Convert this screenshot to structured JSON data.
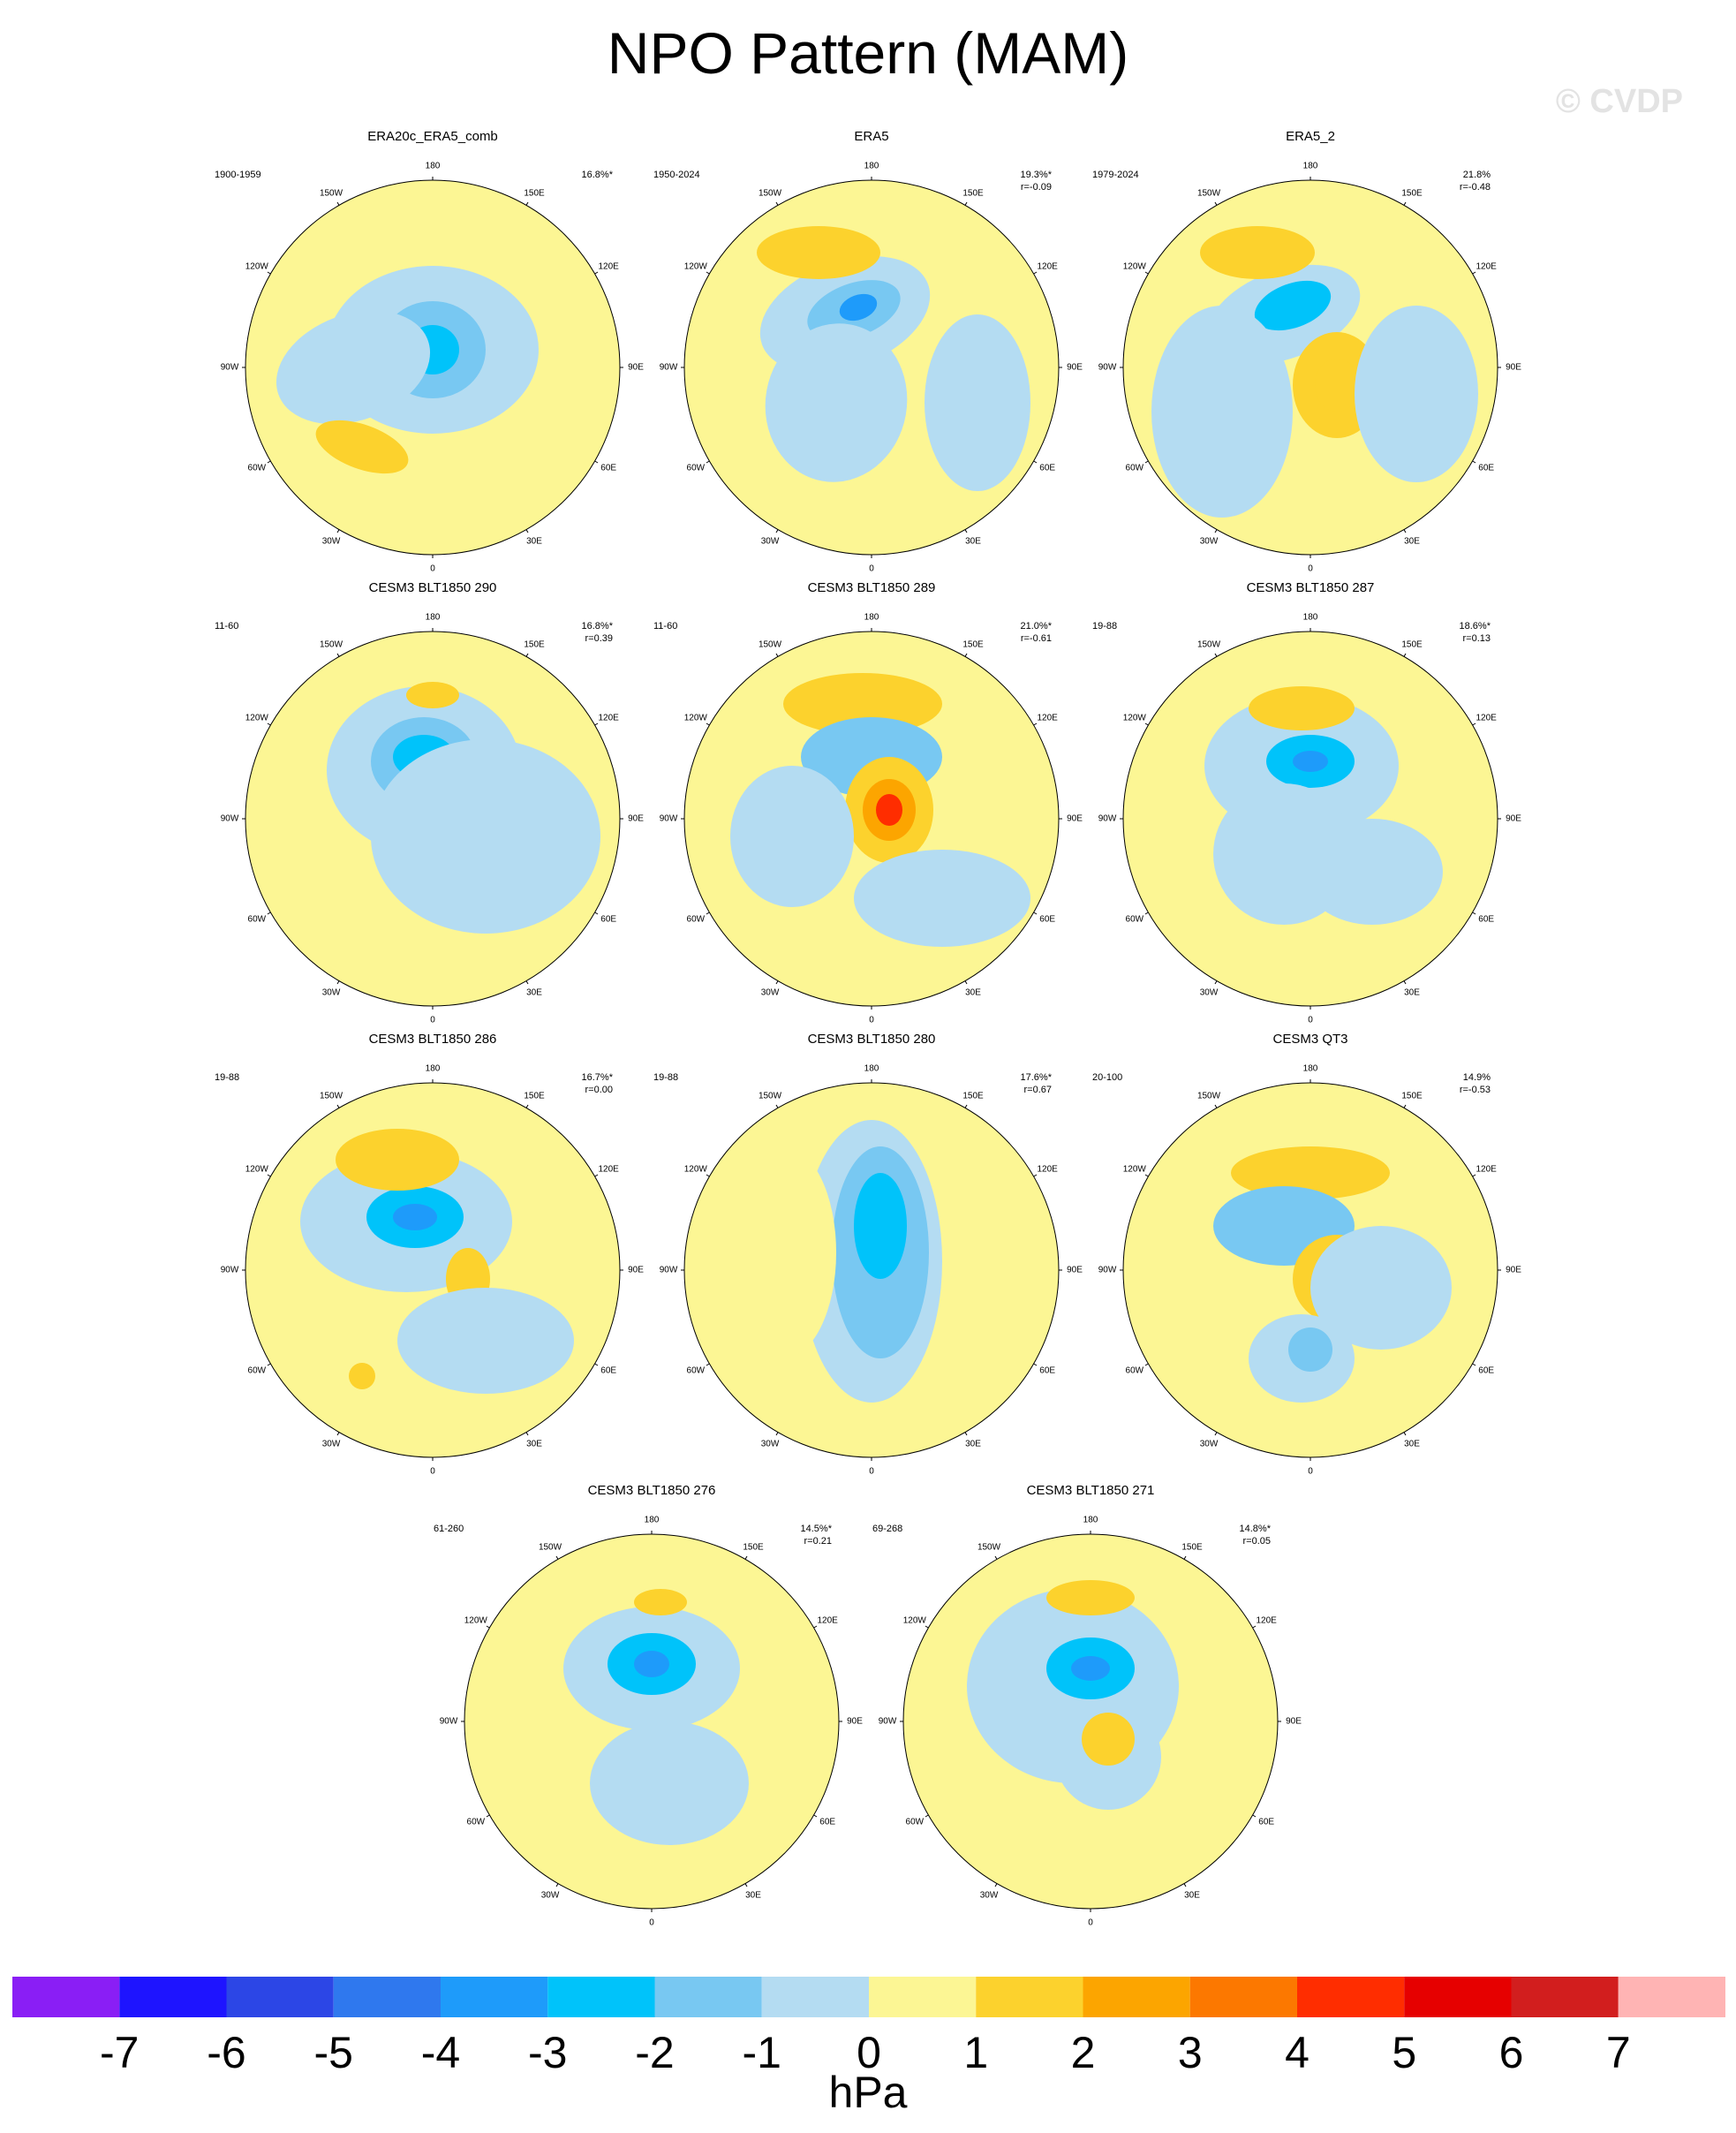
{
  "title": "NPO Pattern (MAM)",
  "watermark": "© CVDP",
  "lon_labels": [
    "180",
    "150E",
    "120E",
    "90E",
    "60E",
    "30E",
    "0",
    "30W",
    "60W",
    "90W",
    "120W",
    "150W"
  ],
  "colorbar": {
    "units": "hPa",
    "labels": [
      "-7",
      "-6",
      "-5",
      "-4",
      "-3",
      "-2",
      "-1",
      "0",
      "1",
      "2",
      "3",
      "4",
      "5",
      "6",
      "7"
    ],
    "colors": [
      "#8a1ef5",
      "#1e14ff",
      "#2c46e6",
      "#2f78ee",
      "#1e9bfa",
      "#00c3fa",
      "#78c8f2",
      "#b4dcf2",
      "#fcf694",
      "#fcd22d",
      "#fca500",
      "#fc7800",
      "#ff2d00",
      "#e60000",
      "#d21e1e",
      "#ffb4b4"
    ]
  },
  "chart_data": [
    {
      "type": "heatmap",
      "title": "ERA20c_ERA5_comb",
      "years": "1900-1959",
      "variance": "16.8%*",
      "r": ""
    },
    {
      "type": "heatmap",
      "title": "ERA5",
      "years": "1950-2024",
      "variance": "19.3%*",
      "r": "r=-0.09"
    },
    {
      "type": "heatmap",
      "title": "ERA5_2",
      "years": "1979-2024",
      "variance": "21.8%",
      "r": "r=-0.48"
    },
    {
      "type": "heatmap",
      "title": "CESM3 BLT1850 290",
      "years": "11-60",
      "variance": "16.8%*",
      "r": "r=0.39"
    },
    {
      "type": "heatmap",
      "title": "CESM3 BLT1850 289",
      "years": "11-60",
      "variance": "21.0%*",
      "r": "r=-0.61"
    },
    {
      "type": "heatmap",
      "title": "CESM3 BLT1850 287",
      "years": "19-88",
      "variance": "18.6%*",
      "r": "r=0.13"
    },
    {
      "type": "heatmap",
      "title": "CESM3 BLT1850 286",
      "years": "19-88",
      "variance": "16.7%*",
      "r": "r=0.00"
    },
    {
      "type": "heatmap",
      "title": "CESM3 BLT1850 280",
      "years": "19-88",
      "variance": "17.6%*",
      "r": "r=0.67"
    },
    {
      "type": "heatmap",
      "title": "CESM3 QT3",
      "years": "20-100",
      "variance": "14.9%",
      "r": "r=-0.53"
    },
    {
      "type": "heatmap",
      "title": "CESM3 BLT1850 276",
      "years": "61-260",
      "variance": "14.5%*",
      "r": "r=0.21"
    },
    {
      "type": "heatmap",
      "title": "CESM3 BLT1850 271",
      "years": "69-268",
      "variance": "14.8%*",
      "r": "r=0.05"
    }
  ]
}
